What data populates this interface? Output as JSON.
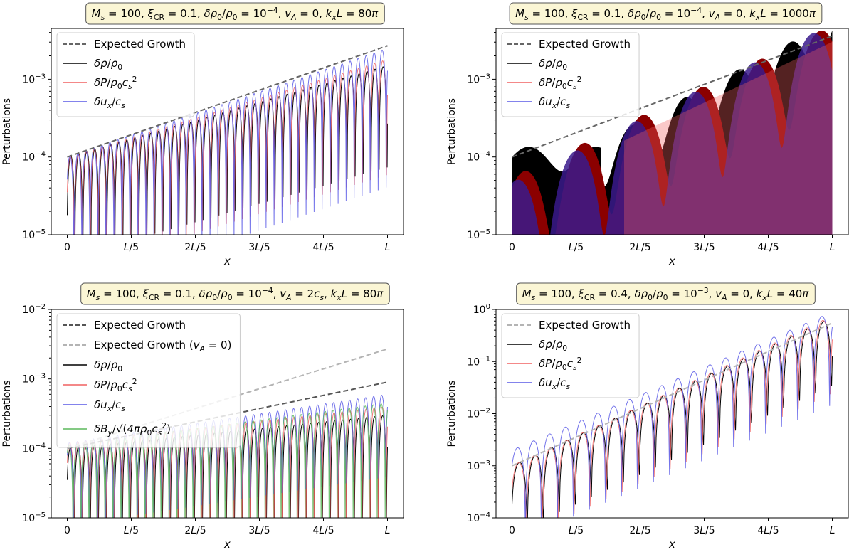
{
  "chart_data": [
    {
      "type": "line",
      "title": "Ms = 100, ξCR = 0.1, δρ0/ρ0 = 10^-4, vA = 0, kxL = 80π",
      "ylabel": "Perturbations",
      "xlabel": "x",
      "yscale": "log",
      "ylim": [
        1e-05,
        0.0045
      ],
      "xlim": [
        -0.05,
        1.05
      ],
      "xticks": [
        0,
        0.2,
        0.4,
        0.6,
        0.8,
        1.0
      ],
      "xtick_labels": [
        "0",
        "L/5",
        "2L/5",
        "3L/5",
        "4L/5",
        "L"
      ],
      "yticks": [
        1e-05,
        0.0001,
        0.001
      ],
      "ytick_labels": [
        "10^-5",
        "10^-4",
        "10^-3"
      ],
      "legend": "top-left",
      "series": [
        {
          "name": "Expected Growth",
          "style": "dashed",
          "color": "#666666",
          "start": 0.0001,
          "end": 0.0027
        },
        {
          "name": "δρ/ρ0",
          "color": "#000000",
          "amplitude_start": 0.0001,
          "amplitude_end": 0.0015,
          "cycles": 40
        },
        {
          "name": "δP/ρ0cs²",
          "color": "#f06060",
          "amplitude_start": 0.0001,
          "amplitude_end": 0.0018,
          "cycles": 40
        },
        {
          "name": "δux/cs",
          "color": "#5a5ae6",
          "amplitude_start": 0.0001,
          "amplitude_end": 0.0025,
          "cycles": 40
        }
      ]
    },
    {
      "type": "area",
      "title": "Ms = 100, ξCR = 0.1, δρ0/ρ0 = 10^-4, vA = 0, kxL = 1000π",
      "ylabel": "Perturbations",
      "xlabel": "x",
      "yscale": "log",
      "ylim": [
        1e-05,
        0.0045
      ],
      "xlim": [
        -0.05,
        1.05
      ],
      "xticks": [
        0,
        0.2,
        0.4,
        0.6,
        0.8,
        1.0
      ],
      "xtick_labels": [
        "0",
        "L/5",
        "2L/5",
        "3L/5",
        "4L/5",
        "L"
      ],
      "yticks": [
        1e-05,
        0.0001,
        0.001
      ],
      "ytick_labels": [
        "10^-5",
        "10^-4",
        "10^-3"
      ],
      "legend": "top-left",
      "series": [
        {
          "name": "Expected Growth",
          "style": "dashed",
          "color": "#666666",
          "start": 0.0001,
          "end": 0.0036
        },
        {
          "name": "δρ/ρ0",
          "color": "#000000"
        },
        {
          "name": "δP/ρ0cs²",
          "color": "#f06060"
        },
        {
          "name": "δux/cs",
          "color": "#5a5ae6"
        }
      ]
    },
    {
      "type": "line",
      "title": "Ms = 100, ξCR = 0.1, δρ0/ρ0 = 10^-4, vA = 2cs, kxL = 80π",
      "ylabel": "Perturbations",
      "xlabel": "x",
      "yscale": "log",
      "ylim": [
        1e-05,
        0.01
      ],
      "xlim": [
        -0.05,
        1.05
      ],
      "xticks": [
        0,
        0.2,
        0.4,
        0.6,
        0.8,
        1.0
      ],
      "xtick_labels": [
        "0",
        "L/5",
        "2L/5",
        "3L/5",
        "4L/5",
        "L"
      ],
      "yticks": [
        1e-05,
        0.0001,
        0.001,
        0.01
      ],
      "ytick_labels": [
        "10^-5",
        "10^-4",
        "10^-3",
        "10^-2"
      ],
      "legend": "top-left",
      "series": [
        {
          "name": "Expected Growth",
          "style": "dashed",
          "color": "#555555",
          "start": 0.0001,
          "end": 0.0009
        },
        {
          "name": "Expected Growth (vA = 0)",
          "style": "dashed",
          "color": "#b4b4b4",
          "start": 0.0001,
          "end": 0.0027
        },
        {
          "name": "δρ/ρ0",
          "color": "#000000",
          "amplitude_start": 0.0001,
          "amplitude_end": 0.0003,
          "cycles": 40
        },
        {
          "name": "δP/ρ0cs²",
          "color": "#f06060",
          "amplitude_start": 0.00012,
          "amplitude_end": 0.0004,
          "cycles": 40
        },
        {
          "name": "δux/cs",
          "color": "#5a5ae6",
          "amplitude_start": 0.00012,
          "amplitude_end": 0.0006,
          "cycles": 40
        },
        {
          "name": "δBy/√(4πρ0cs²)",
          "color": "#5cb85c",
          "amplitude_start": 0.00011,
          "amplitude_end": 0.00045,
          "cycles": 40
        }
      ]
    },
    {
      "type": "line",
      "title": "Ms = 100, ξCR = 0.4, δρ0/ρ0 = 10^-3, vA = 0, kxL = 40π",
      "ylabel": "Perturbations",
      "xlabel": "x",
      "yscale": "log",
      "ylim": [
        0.0001,
        1.0
      ],
      "xlim": [
        -0.05,
        1.05
      ],
      "xticks": [
        0,
        0.2,
        0.4,
        0.6,
        0.8,
        1.0
      ],
      "xtick_labels": [
        "0",
        "L/5",
        "2L/5",
        "3L/5",
        "4L/5",
        "L"
      ],
      "yticks": [
        0.0001,
        0.001,
        0.01,
        0.1,
        1.0
      ],
      "ytick_labels": [
        "10^-4",
        "10^-3",
        "10^-2",
        "10^-1",
        "10^0"
      ],
      "legend": "top-left",
      "series": [
        {
          "name": "Expected Growth",
          "style": "dashed",
          "color": "#b4b4b4",
          "start": 0.001,
          "end": 0.55
        },
        {
          "name": "δρ/ρ0",
          "color": "#000000",
          "amplitude_start": 0.001,
          "amplitude_end": 0.7,
          "cycles": 20
        },
        {
          "name": "δP/ρ0cs²",
          "color": "#f06060",
          "amplitude_start": 0.001,
          "amplitude_end": 0.75,
          "cycles": 20
        },
        {
          "name": "δux/cs",
          "color": "#5a5ae6",
          "amplitude_start": 0.002,
          "amplitude_end": 0.9,
          "cycles": 20
        }
      ]
    }
  ]
}
